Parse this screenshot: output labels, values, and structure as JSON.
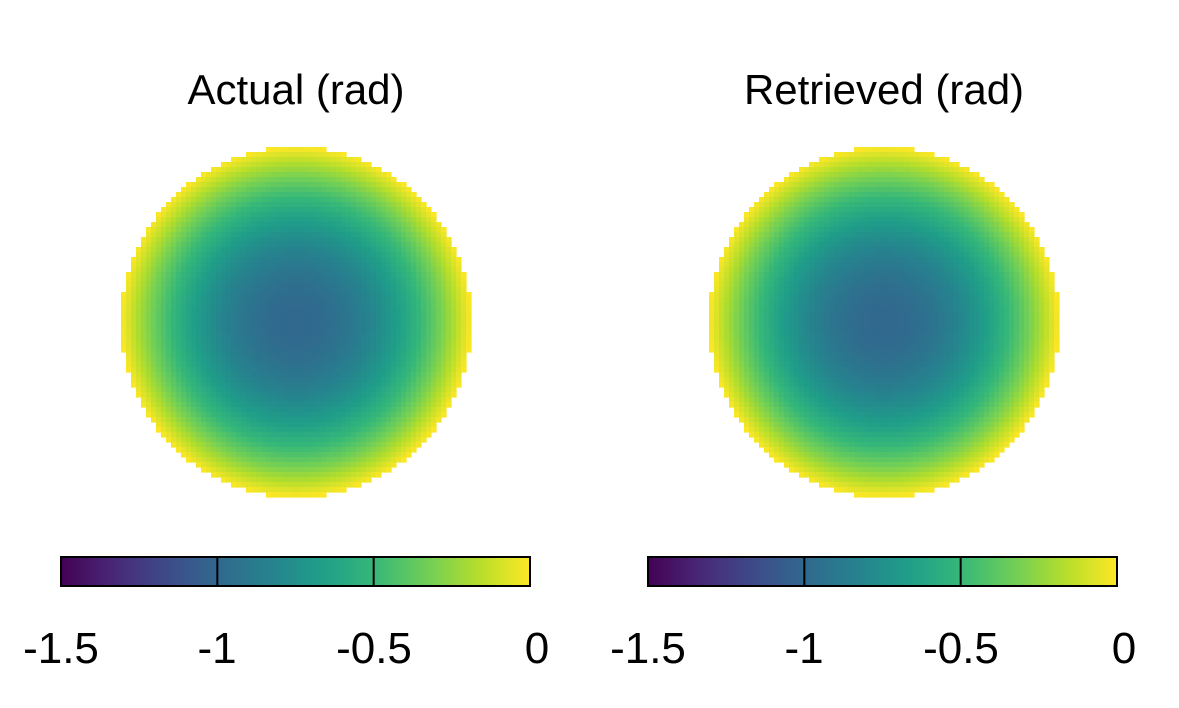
{
  "chart_data": [
    {
      "type": "heatmap",
      "title": "Actual (rad)",
      "shape": "circular pupil",
      "center_value": -1.0,
      "edge_value": 0.0,
      "colormap": "viridis",
      "colorbar": {
        "range": [
          -1.5,
          0
        ],
        "ticks": [
          "-1.5",
          "-1",
          "-0.5",
          "0"
        ],
        "orientation": "horizontal",
        "placement": "bottom"
      }
    },
    {
      "type": "heatmap",
      "title": "Retrieved (rad)",
      "shape": "circular pupil",
      "center_value": -1.0,
      "edge_value": 0.0,
      "colormap": "viridis",
      "colorbar": {
        "range": [
          -1.5,
          0
        ],
        "ticks": [
          "-1.5",
          "-1",
          "-0.5",
          "0"
        ],
        "orientation": "horizontal",
        "placement": "bottom"
      }
    }
  ]
}
